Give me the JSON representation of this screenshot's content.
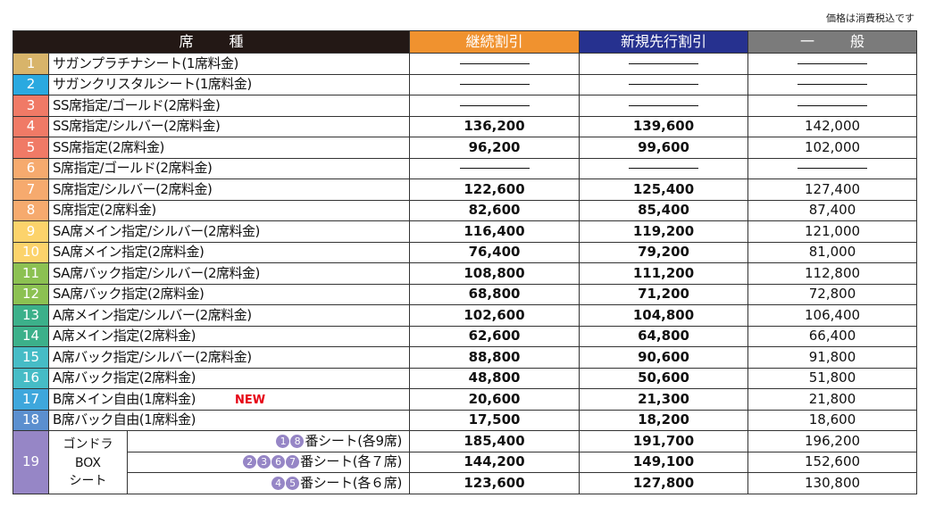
{
  "note": "価格は消費税込です",
  "headers": {
    "seat": "席種",
    "continuing": "継続割引",
    "new_advance": "新規先行割引",
    "general": "一般"
  },
  "dash": "―",
  "rows": [
    {
      "num": "1",
      "color": "#d8b46a",
      "name": "サガンプラチナシート(1席料金)",
      "cont": null,
      "newp": null,
      "gen": null
    },
    {
      "num": "2",
      "color": "#2aa9e0",
      "name": "サガンクリスタルシート(1席料金)",
      "cont": null,
      "newp": null,
      "gen": null
    },
    {
      "num": "3",
      "color": "#f07a66",
      "name": "SS席指定/ゴールド(2席料金)",
      "cont": null,
      "newp": null,
      "gen": null
    },
    {
      "num": "4",
      "color": "#f07a66",
      "name": "SS席指定/シルバー(2席料金)",
      "cont": "136,200",
      "newp": "139,600",
      "gen": "142,000"
    },
    {
      "num": "5",
      "color": "#f07a66",
      "name": "SS席指定(2席料金)",
      "cont": "96,200",
      "newp": "99,600",
      "gen": "102,000"
    },
    {
      "num": "6",
      "color": "#f6aa6e",
      "name": "S席指定/ゴールド(2席料金)",
      "cont": null,
      "newp": null,
      "gen": null
    },
    {
      "num": "7",
      "color": "#f6aa6e",
      "name": "S席指定/シルバー(2席料金)",
      "cont": "122,600",
      "newp": "125,400",
      "gen": "127,400"
    },
    {
      "num": "8",
      "color": "#f6aa6e",
      "name": "S席指定(2席料金)",
      "cont": "82,600",
      "newp": "85,400",
      "gen": "87,400"
    },
    {
      "num": "9",
      "color": "#fcd36b",
      "name": "SA席メイン指定/シルバー(2席料金)",
      "cont": "116,400",
      "newp": "119,200",
      "gen": "121,000"
    },
    {
      "num": "10",
      "color": "#fcd36b",
      "name": "SA席メイン指定(2席料金)",
      "cont": "76,400",
      "newp": "79,200",
      "gen": "81,000"
    },
    {
      "num": "11",
      "color": "#8cc152",
      "name": "SA席バック指定/シルバー(2席料金)",
      "cont": "108,800",
      "newp": "111,200",
      "gen": "112,800"
    },
    {
      "num": "12",
      "color": "#8cc152",
      "name": "SA席バック指定(2席料金)",
      "cont": "68,800",
      "newp": "71,200",
      "gen": "72,800"
    },
    {
      "num": "13",
      "color": "#3cb08a",
      "name": "A席メイン指定/シルバー(2席料金)",
      "cont": "102,600",
      "newp": "104,800",
      "gen": "106,400"
    },
    {
      "num": "14",
      "color": "#3cb08a",
      "name": "A席メイン指定(2席料金)",
      "cont": "62,600",
      "newp": "64,800",
      "gen": "66,400"
    },
    {
      "num": "15",
      "color": "#46bcc6",
      "name": "A席バック指定/シルバー(2席料金)",
      "cont": "88,800",
      "newp": "90,600",
      "gen": "91,800"
    },
    {
      "num": "16",
      "color": "#46bcc6",
      "name": "A席バック指定(2席料金)",
      "cont": "48,800",
      "newp": "50,600",
      "gen": "51,800"
    },
    {
      "num": "17",
      "color": "#3ea7dc",
      "name": "B席メイン自由(1席料金)",
      "tag": "NEW",
      "cont": "20,600",
      "newp": "21,300",
      "gen": "21,800"
    },
    {
      "num": "18",
      "color": "#5b8fcf",
      "name": "B席バック自由(1席料金)",
      "cont": "17,500",
      "newp": "18,200",
      "gen": "18,600"
    }
  ],
  "gondola": {
    "num": "19",
    "color": "#9686c6",
    "label_lines": [
      "ゴンドラ",
      "BOX",
      "シート"
    ],
    "sub_rows": [
      {
        "circles": [
          "1",
          "8"
        ],
        "text": "番シート(各9席)",
        "cont": "185,400",
        "newp": "191,700",
        "gen": "196,200"
      },
      {
        "circles": [
          "2",
          "3",
          "6",
          "7"
        ],
        "text": "番シート(各７席)",
        "cont": "144,200",
        "newp": "149,100",
        "gen": "152,600"
      },
      {
        "circles": [
          "4",
          "5"
        ],
        "text": "番シート(各６席)",
        "cont": "123,600",
        "newp": "127,800",
        "gen": "130,800"
      }
    ]
  }
}
